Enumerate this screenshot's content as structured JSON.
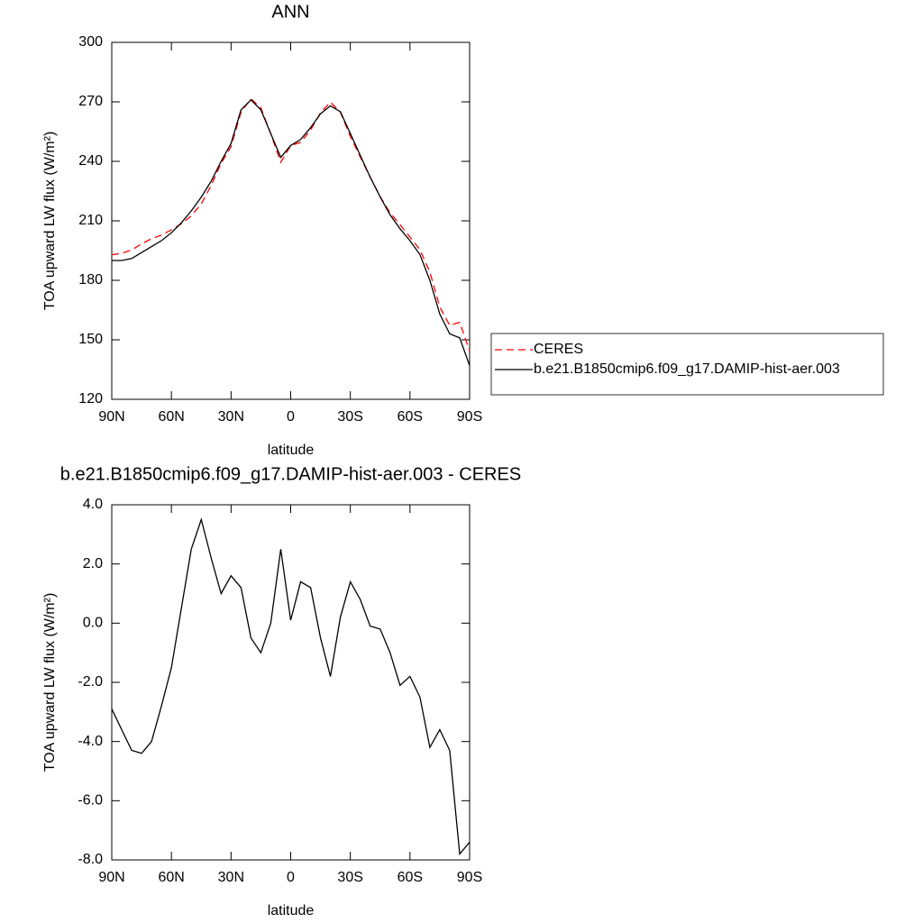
{
  "chart_data": [
    {
      "type": "line",
      "title": "ANN",
      "x": [
        90,
        85,
        80,
        75,
        70,
        65,
        60,
        55,
        50,
        45,
        40,
        35,
        30,
        25,
        20,
        15,
        10,
        5,
        0,
        -5,
        -10,
        -15,
        -20,
        -25,
        -30,
        -35,
        -40,
        -45,
        -50,
        -55,
        -60,
        -65,
        -70,
        -75,
        -80,
        -85,
        -90
      ],
      "series": [
        {
          "name": "CERES",
          "color": "#ff0000",
          "line_style": "dashed",
          "values": [
            192.9,
            193.6,
            195.3,
            198.4,
            201,
            202.8,
            205.5,
            208.5,
            212.5,
            218.5,
            227.8,
            239,
            247.4,
            264.8,
            271.5,
            267,
            254,
            239.5,
            247.9,
            249.6,
            255.8,
            264.5,
            269.8,
            264.8,
            252.6,
            242.2,
            232.1,
            222.2,
            214,
            208.1,
            201.8,
            195.5,
            184.2,
            166.6,
            157.3,
            158.8,
            144.4
          ]
        },
        {
          "name": "b.e21.B1850cmip6.f09_g17.DAMIP-hist-aer.003",
          "color": "#000000",
          "line_style": "solid",
          "values": [
            190,
            190,
            191,
            194,
            197,
            200,
            204,
            209,
            215,
            222,
            230,
            240,
            249,
            266,
            271,
            266,
            254,
            242,
            248,
            251,
            257,
            264,
            268,
            265,
            254,
            243,
            232,
            222,
            213,
            206,
            200,
            193,
            180,
            163,
            153,
            151,
            137
          ]
        }
      ],
      "xlim": [
        90,
        -90
      ],
      "xticks": [
        {
          "value": 90,
          "label": "90N"
        },
        {
          "value": 60,
          "label": "60N"
        },
        {
          "value": 30,
          "label": "30N"
        },
        0,
        {
          "value": -30,
          "label": "30S"
        },
        {
          "value": -60,
          "label": "60S"
        },
        {
          "value": -90,
          "label": "90S"
        }
      ],
      "ylim": [
        120,
        300
      ],
      "yticks": [
        120,
        150,
        180,
        210,
        240,
        270,
        300
      ],
      "xlabel": "latitude",
      "ylabel": "TOA upward LW flux (W/m²)",
      "legend": "right"
    },
    {
      "type": "line",
      "title": "b.e21.B1850cmip6.f09_g17.DAMIP-hist-aer.003 - CERES",
      "x": [
        90,
        85,
        80,
        75,
        70,
        65,
        60,
        55,
        50,
        45,
        40,
        35,
        30,
        25,
        20,
        15,
        10,
        5,
        0,
        -5,
        -10,
        -15,
        -20,
        -25,
        -30,
        -35,
        -40,
        -45,
        -50,
        -55,
        -60,
        -65,
        -70,
        -75,
        -80,
        -85,
        -90
      ],
      "values": [
        -2.9,
        -3.6,
        -4.3,
        -4.4,
        -4.0,
        -2.8,
        -1.5,
        0.5,
        2.5,
        3.5,
        2.2,
        1.0,
        1.6,
        1.2,
        -0.5,
        -1.0,
        0.0,
        2.5,
        0.1,
        1.4,
        1.2,
        -0.5,
        -1.8,
        0.2,
        1.4,
        0.8,
        -0.1,
        -0.2,
        -1.0,
        -2.1,
        -1.8,
        -2.5,
        -4.2,
        -3.6,
        -4.3,
        -7.8,
        -7.4
      ],
      "color": "#000000",
      "xlim": [
        90,
        -90
      ],
      "xticks": [
        {
          "value": 90,
          "label": "90N"
        },
        {
          "value": 60,
          "label": "60N"
        },
        {
          "value": 30,
          "label": "30N"
        },
        0,
        {
          "value": -30,
          "label": "30S"
        },
        {
          "value": -60,
          "label": "60S"
        },
        {
          "value": -90,
          "label": "90S"
        }
      ],
      "ylim": [
        -8,
        4
      ],
      "yticks": [
        {
          "value": -8,
          "label": "-8.0"
        },
        {
          "value": -6,
          "label": "-6.0"
        },
        {
          "value": -4,
          "label": "-4.0"
        },
        {
          "value": -2,
          "label": "-2.0"
        },
        {
          "value": 0,
          "label": "0.0"
        },
        {
          "value": 2,
          "label": "2.0"
        },
        {
          "value": 4,
          "label": "4.0"
        }
      ],
      "xlabel": "latitude",
      "ylabel": "TOA upward LW flux (W/m²)"
    }
  ]
}
